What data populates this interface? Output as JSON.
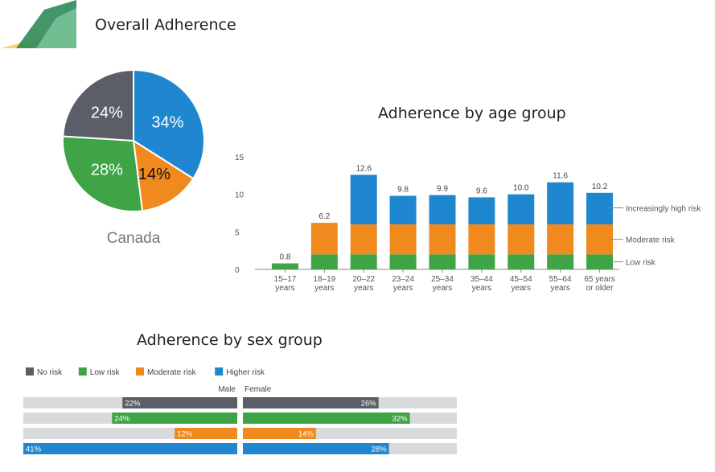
{
  "titles": {
    "pie": "Overall Adherence",
    "age": "Adherence by age group",
    "sex": "Adherence by sex group"
  },
  "colors": {
    "none": "#5b5e66",
    "low": "#3ea445",
    "moderate": "#f0891e",
    "high": "#1f87cf",
    "track": "#d9dadc",
    "axis": "#888888"
  },
  "chart_data": [
    {
      "type": "pie",
      "title": "Overall Adherence",
      "caption": "Canada",
      "slices": [
        {
          "label": "34%",
          "value": 34,
          "color": "#1f87cf"
        },
        {
          "label": "14%",
          "value": 14,
          "color": "#f0891e"
        },
        {
          "label": "28%",
          "value": 28,
          "color": "#3ea445"
        },
        {
          "label": "24%",
          "value": 24,
          "color": "#5b5e66"
        }
      ]
    },
    {
      "type": "bar",
      "stacked": true,
      "title": "Adherence by age group",
      "categories": [
        [
          "15–17",
          "years"
        ],
        [
          "18–19",
          "years"
        ],
        [
          "20–22",
          "years"
        ],
        [
          "23–24",
          "years"
        ],
        [
          "25–34",
          "years"
        ],
        [
          "35–44",
          "years"
        ],
        [
          "45–54",
          "years"
        ],
        [
          "55–64",
          "years"
        ],
        [
          "65 years",
          "or older"
        ]
      ],
      "totals": [
        0.8,
        6.2,
        12.6,
        9.8,
        9.9,
        9.6,
        10.0,
        11.6,
        10.2
      ],
      "total_labels": [
        "0.8",
        "6.2",
        "12.6",
        "9.8",
        "9.9",
        "9.6",
        "10.0",
        "11.6",
        "10.2"
      ],
      "series": [
        {
          "name": "Low risk",
          "color": "#3ea445",
          "values": [
            0.8,
            2,
            2,
            2,
            2,
            2,
            2,
            2,
            2
          ]
        },
        {
          "name": "Moderate risk",
          "color": "#f0891e",
          "values": [
            0,
            4.2,
            4,
            4,
            4,
            4,
            4,
            4,
            4
          ]
        },
        {
          "name": "Increasingly high risk",
          "color": "#1f87cf",
          "values": [
            0,
            0,
            6.6,
            3.8,
            3.9,
            3.6,
            4.0,
            5.6,
            4.2
          ]
        }
      ],
      "ylim": [
        0,
        15
      ],
      "yticks": [
        0,
        5,
        10,
        15
      ],
      "ytick_labels": [
        "0",
        "5",
        "10",
        "15"
      ],
      "legend_position": "right",
      "legend": [
        {
          "label": "Increasingly high risk",
          "at": 8.2
        },
        {
          "label": "Moderate risk",
          "at": 4.0
        },
        {
          "label": "Low risk",
          "at": 1.0
        }
      ]
    },
    {
      "type": "bar",
      "orientation": "horizontal",
      "title": "Adherence by sex group",
      "legend": [
        {
          "label": "No risk",
          "color": "#5b5e66"
        },
        {
          "label": "Low risk",
          "color": "#3ea445"
        },
        {
          "label": "Moderate risk",
          "color": "#f0891e"
        },
        {
          "label": "Higher risk",
          "color": "#1f87cf"
        }
      ],
      "groups": [
        "Male",
        "Female"
      ],
      "xlim": [
        0,
        41
      ],
      "rows": [
        {
          "category": "No risk",
          "color": "#5b5e66",
          "male": 22,
          "female": 26,
          "male_label": "22%",
          "female_label": "26%"
        },
        {
          "category": "Low risk",
          "color": "#3ea445",
          "male": 24,
          "female": 32,
          "male_label": "24%",
          "female_label": "32%"
        },
        {
          "category": "Moderate risk",
          "color": "#f0891e",
          "male": 12,
          "female": 14,
          "male_label": "12%",
          "female_label": "14%"
        },
        {
          "category": "Higher risk",
          "color": "#1f87cf",
          "male": 41,
          "female": 28,
          "male_label": "41%",
          "female_label": "28%"
        }
      ]
    }
  ]
}
